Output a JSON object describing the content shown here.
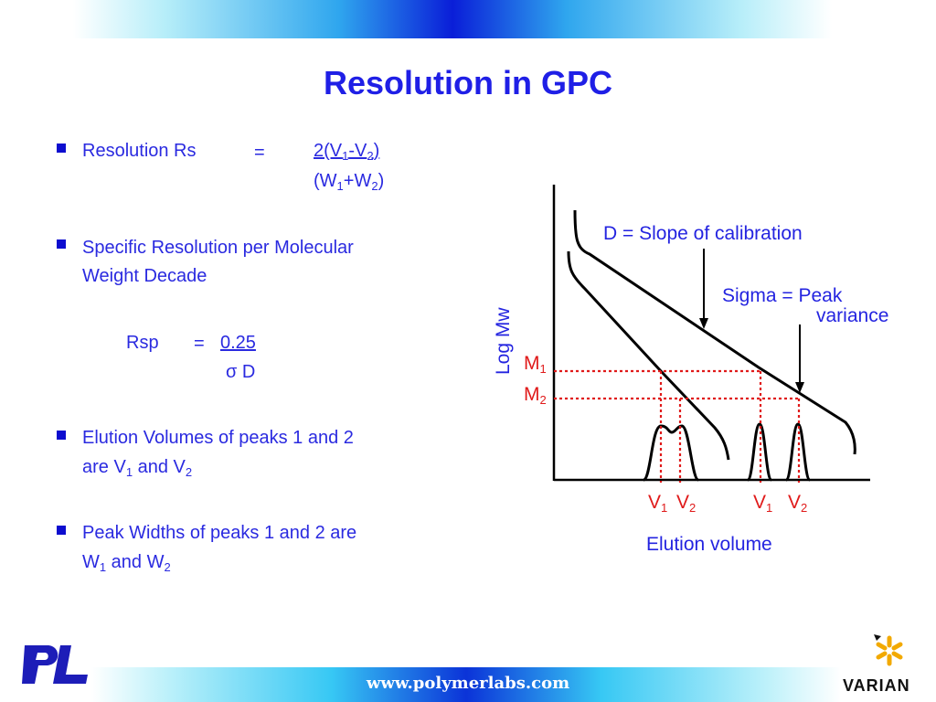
{
  "title": "Resolution in GPC",
  "resolution": {
    "label": "Resolution Rs",
    "equals": "=",
    "num_prefix": "2(V",
    "num_sub1": "1",
    "num_mid": "-V",
    "num_sub2": "2",
    "num_suffix": ")",
    "den_prefix": "(W",
    "den_sub1": "1",
    "den_mid": "+W",
    "den_sub2": "2",
    "den_suffix": ")"
  },
  "specific": {
    "line1": "Specific Resolution per Molecular",
    "line2": "Weight Decade",
    "rsp_label": "Rsp",
    "equals": "=",
    "numerator": "0.25",
    "sigma": "σ",
    "den_var": "D"
  },
  "elution": {
    "line1": "Elution Volumes of peaks 1 and 2",
    "line2_prefix": "are V",
    "sub1": "1",
    "mid": " and V",
    "sub2": "2"
  },
  "widths": {
    "line1": "Peak Widths of peaks 1 and 2 are",
    "line2_prefix": "W",
    "sub1": "1",
    "mid": " and W",
    "sub2": "2"
  },
  "diagram": {
    "y_axis_label": "Log Mw",
    "x_axis_label": "Elution volume",
    "annotation_d": "D = Slope of calibration",
    "annotation_sigma_1": "Sigma = Peak",
    "annotation_sigma_2": "variance",
    "m_label": "M",
    "m1_sub": "1",
    "m2_sub": "2",
    "v_label": "V",
    "v1_sub": "1",
    "v2_sub": "2",
    "accent_color": "#2424e0",
    "marker_color": "#e01a1a"
  },
  "footer": {
    "url": "www.polymerlabs.com",
    "brand_right": "VARIAN",
    "brand_left": "PL"
  }
}
